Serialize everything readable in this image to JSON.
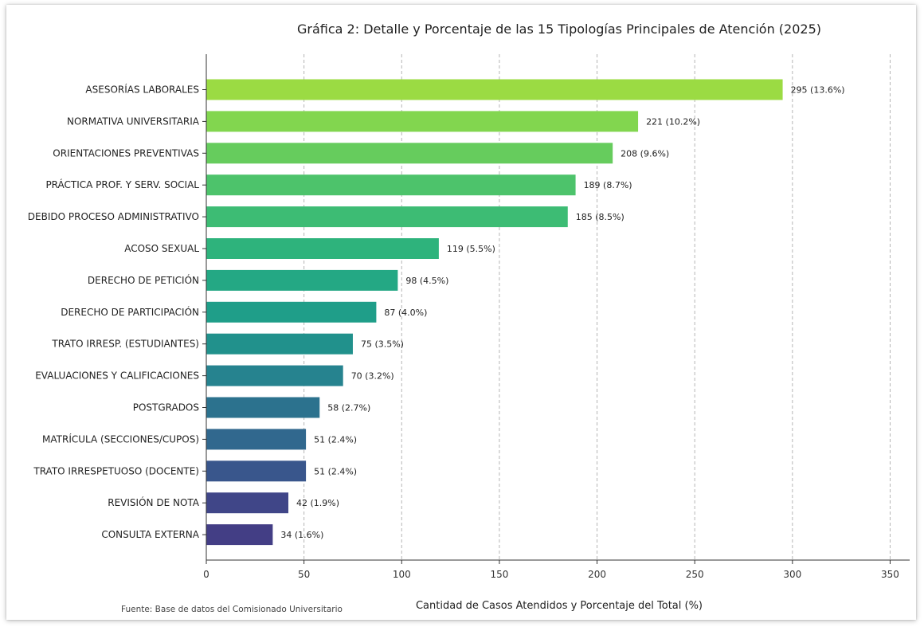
{
  "chart_data": {
    "type": "bar",
    "orientation": "horizontal",
    "title": "Gráfica 2: Detalle y Porcentaje de las 15 Tipologías Principales de Atención (2025)",
    "xlabel": "Cantidad de Casos Atendidos y Porcentaje del Total (%)",
    "ylabel": "",
    "xlim": [
      0,
      360
    ],
    "xticks": [
      0,
      50,
      100,
      150,
      200,
      250,
      300,
      350
    ],
    "grid": "vertical-dashed",
    "source": "Fuente: Base de datos del Comisionado Universitario",
    "categories": [
      "ASESORÍAS LABORALES",
      "NORMATIVA UNIVERSITARIA",
      "ORIENTACIONES PREVENTIVAS",
      "PRÁCTICA PROF. Y SERV. SOCIAL",
      "DEBIDO PROCESO ADMINISTRATIVO",
      "ACOSO SEXUAL",
      "DERECHO DE PETICIÓN",
      "DERECHO DE PARTICIPACIÓN",
      "TRATO IRRESP. (ESTUDIANTES)",
      "EVALUACIONES Y CALIFICACIONES",
      "POSTGRADOS",
      "MATRÍCULA (SECCIONES/CUPOS)",
      "TRATO IRRESPETUOSO (DOCENTE)",
      "REVISIÓN DE NOTA",
      "CONSULTA EXTERNA"
    ],
    "values": [
      295,
      221,
      208,
      189,
      185,
      119,
      98,
      87,
      75,
      70,
      58,
      51,
      51,
      42,
      34
    ],
    "data_labels": [
      "295 (13.6%)",
      "221 (10.2%)",
      "208 (9.6%)",
      "189 (8.7%)",
      "185 (8.5%)",
      "119 (5.5%)",
      "98 (4.5%)",
      "87 (4.0%)",
      "75 (3.5%)",
      "70 (3.2%)",
      "58 (2.7%)",
      "51 (2.4%)",
      "51 (2.4%)",
      "42 (1.9%)",
      "34 (1.6%)"
    ],
    "colors": [
      "#9bdb43",
      "#82d64f",
      "#66cc5d",
      "#4dc36b",
      "#3dbc74",
      "#2eb37c",
      "#24a884",
      "#1f9e89",
      "#21918c",
      "#26838f",
      "#2c728e",
      "#31688e",
      "#39568c",
      "#404688",
      "#433e85"
    ]
  }
}
